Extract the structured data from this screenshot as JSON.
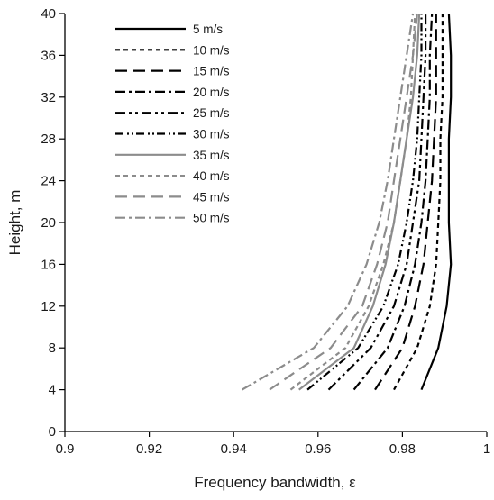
{
  "chart_data": {
    "type": "line",
    "title": "",
    "xlabel": "Frequency bandwidth, ε",
    "ylabel": "Height, m",
    "xlim": [
      0.9,
      1.0
    ],
    "ylim": [
      0,
      40
    ],
    "xticks": [
      "0.9",
      "0.92",
      "0.94",
      "0.96",
      "0.98",
      "1"
    ],
    "yticks": [
      "0",
      "4",
      "8",
      "12",
      "16",
      "20",
      "24",
      "28",
      "32",
      "36",
      "40"
    ],
    "grid": false,
    "legend_position": "top-left",
    "y": [
      4,
      8,
      12,
      16,
      20,
      24,
      28,
      32,
      36,
      40
    ],
    "series": [
      {
        "name": "5 m/s",
        "color": "#000000",
        "dash": "solid",
        "x": [
          0.9845,
          0.9885,
          0.9905,
          0.9915,
          0.991,
          0.991,
          0.991,
          0.9915,
          0.9915,
          0.991
        ]
      },
      {
        "name": "10 m/s",
        "color": "#000000",
        "dash": "short",
        "x": [
          0.978,
          0.9835,
          0.9865,
          0.988,
          0.9885,
          0.989,
          0.989,
          0.9895,
          0.9895,
          0.9895
        ]
      },
      {
        "name": "15 m/s",
        "color": "#000000",
        "dash": "long",
        "x": [
          0.9735,
          0.98,
          0.983,
          0.985,
          0.986,
          0.987,
          0.9875,
          0.988,
          0.988,
          0.988
        ]
      },
      {
        "name": "20 m/s",
        "color": "#000000",
        "dash": "dashdot",
        "x": [
          0.9685,
          0.9765,
          0.9805,
          0.983,
          0.9845,
          0.9855,
          0.986,
          0.9865,
          0.9865,
          0.987
        ]
      },
      {
        "name": "25 m/s",
        "color": "#000000",
        "dash": "dashdotdot",
        "x": [
          0.9625,
          0.9725,
          0.978,
          0.981,
          0.9825,
          0.984,
          0.9845,
          0.985,
          0.9855,
          0.9855
        ]
      },
      {
        "name": "30 m/s",
        "color": "#000000",
        "dash": "dashdotdot2",
        "x": [
          0.9575,
          0.9695,
          0.9755,
          0.979,
          0.981,
          0.9825,
          0.9835,
          0.984,
          0.9845,
          0.9845
        ]
      },
      {
        "name": "35 m/s",
        "color": "#8c8c8c",
        "dash": "solid",
        "x": [
          0.9555,
          0.9685,
          0.973,
          0.976,
          0.978,
          0.9795,
          0.981,
          0.9825,
          0.9835,
          0.984
        ]
      },
      {
        "name": "40 m/s",
        "color": "#8c8c8c",
        "dash": "short",
        "x": [
          0.9535,
          0.9665,
          0.972,
          0.9755,
          0.978,
          0.9795,
          0.981,
          0.982,
          0.9825,
          0.983
        ]
      },
      {
        "name": "45 m/s",
        "color": "#8c8c8c",
        "dash": "long",
        "x": [
          0.9485,
          0.963,
          0.9705,
          0.974,
          0.9765,
          0.978,
          0.9795,
          0.981,
          0.9825,
          0.9835
        ]
      },
      {
        "name": "50 m/s",
        "color": "#8c8c8c",
        "dash": "dashdot",
        "x": [
          0.942,
          0.959,
          0.967,
          0.9715,
          0.9745,
          0.9765,
          0.978,
          0.9795,
          0.981,
          0.9825
        ]
      }
    ]
  }
}
